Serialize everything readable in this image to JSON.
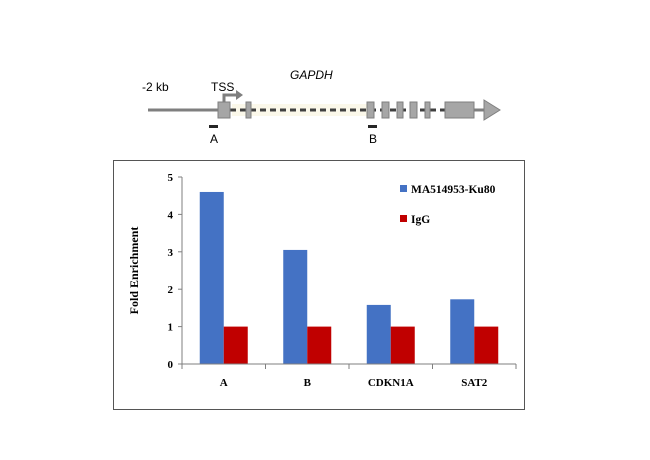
{
  "diagram": {
    "upstream_label": "-2 kb",
    "tss_label": "TSS",
    "gene_name": "GAPDH",
    "region_a_label": "A",
    "region_b_label": "B"
  },
  "chart_data": {
    "type": "bar",
    "categories": [
      "A",
      "B",
      "CDKN1A",
      "SAT2"
    ],
    "series": [
      {
        "name": "MA514953-Ku80",
        "values": [
          4.6,
          3.05,
          1.58,
          1.73
        ],
        "color": "#4472c4"
      },
      {
        "name": "IgG",
        "values": [
          1.0,
          1.0,
          1.0,
          1.0
        ],
        "color": "#c00000"
      }
    ],
    "title": "",
    "xlabel": "",
    "ylabel": "Fold Enrichment",
    "ylim": [
      0,
      5
    ],
    "yticks": [
      0,
      1,
      2,
      3,
      4,
      5
    ],
    "grid": false,
    "legend_position": "top-right"
  }
}
